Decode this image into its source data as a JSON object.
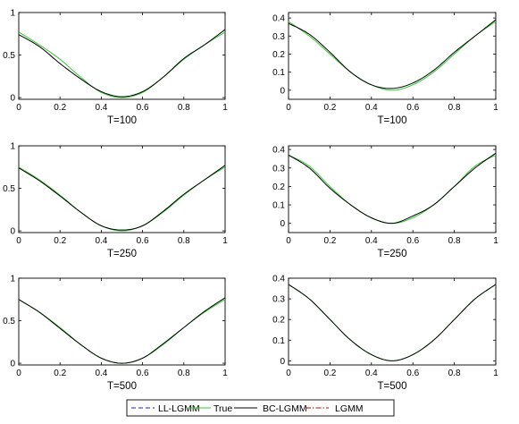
{
  "chart_data": {
    "type": "line",
    "legend": {
      "placement": "bottom",
      "entries": [
        {
          "name": "LL-LGMM",
          "color": "#1a1acc",
          "style": "dashed"
        },
        {
          "name": "True",
          "color": "#33cc33",
          "style": "solid"
        },
        {
          "name": "BC-LGMM",
          "color": "#000000",
          "style": "solid"
        },
        {
          "name": "LGMM",
          "color": "#cc0000",
          "style": "dashdot"
        }
      ]
    },
    "panels": [
      {
        "xlabel": "T=100",
        "xlim": [
          0,
          1
        ],
        "ylim": [
          -0.02,
          1.0
        ],
        "xticks": [
          "0",
          "0.2",
          "0.4",
          "0.6",
          "0.8",
          "1"
        ],
        "yticks": [
          "0",
          "0.5",
          "1"
        ],
        "series": [
          {
            "name": "True",
            "x": [
              0,
              0.1,
              0.2,
              0.3,
              0.4,
              0.5,
              0.6,
              0.7,
              0.8,
              0.9,
              1
            ],
            "y": [
              0.77,
              0.62,
              0.45,
              0.24,
              0.06,
              0.0,
              0.06,
              0.24,
              0.45,
              0.62,
              0.77
            ]
          },
          {
            "name": "BC-LGMM",
            "x": [
              0,
              0.1,
              0.2,
              0.3,
              0.4,
              0.5,
              0.6,
              0.7,
              0.8,
              0.9,
              1
            ],
            "y": [
              0.74,
              0.6,
              0.4,
              0.22,
              0.07,
              0.01,
              0.07,
              0.24,
              0.46,
              0.62,
              0.8
            ]
          }
        ]
      },
      {
        "xlabel": "T=100",
        "xlim": [
          0,
          1
        ],
        "ylim": [
          -0.05,
          0.43
        ],
        "xticks": [
          "0",
          "0.2",
          "0.4",
          "0.6",
          "0.8",
          "1"
        ],
        "yticks": [
          "0",
          "0.1",
          "0.2",
          "0.3",
          "0.4"
        ],
        "series": [
          {
            "name": "True",
            "x": [
              0,
              0.1,
              0.2,
              0.3,
              0.4,
              0.5,
              0.6,
              0.7,
              0.8,
              0.9,
              1
            ],
            "y": [
              0.38,
              0.3,
              0.2,
              0.1,
              0.03,
              0.0,
              0.03,
              0.1,
              0.2,
              0.3,
              0.38
            ]
          },
          {
            "name": "BC-LGMM",
            "x": [
              0,
              0.1,
              0.2,
              0.3,
              0.4,
              0.5,
              0.6,
              0.7,
              0.8,
              0.9,
              1
            ],
            "y": [
              0.37,
              0.31,
              0.21,
              0.1,
              0.03,
              0.01,
              0.04,
              0.11,
              0.21,
              0.3,
              0.39
            ]
          }
        ]
      },
      {
        "xlabel": "T=250",
        "xlim": [
          0,
          1
        ],
        "ylim": [
          -0.02,
          1.0
        ],
        "xticks": [
          "0",
          "0.2",
          "0.4",
          "0.6",
          "0.8",
          "1"
        ],
        "yticks": [
          "0",
          "0.5",
          "1"
        ],
        "series": [
          {
            "name": "True",
            "x": [
              0,
              0.1,
              0.2,
              0.3,
              0.4,
              0.5,
              0.6,
              0.7,
              0.8,
              0.9,
              1
            ],
            "y": [
              0.75,
              0.6,
              0.42,
              0.22,
              0.06,
              0.0,
              0.06,
              0.22,
              0.42,
              0.6,
              0.75
            ]
          },
          {
            "name": "BC-LGMM",
            "x": [
              0,
              0.1,
              0.2,
              0.3,
              0.4,
              0.5,
              0.6,
              0.7,
              0.8,
              0.9,
              1
            ],
            "y": [
              0.74,
              0.59,
              0.41,
              0.22,
              0.06,
              0.01,
              0.06,
              0.23,
              0.43,
              0.6,
              0.77
            ]
          }
        ]
      },
      {
        "xlabel": "T=250",
        "xlim": [
          0,
          1
        ],
        "ylim": [
          -0.05,
          0.42
        ],
        "xticks": [
          "0",
          "0.2",
          "0.4",
          "0.6",
          "0.8",
          "1"
        ],
        "yticks": [
          "0",
          "0.1",
          "0.2",
          "0.3",
          "0.4"
        ],
        "series": [
          {
            "name": "True",
            "x": [
              0,
              0.1,
              0.2,
              0.3,
              0.4,
              0.5,
              0.6,
              0.7,
              0.8,
              0.9,
              1
            ],
            "y": [
              0.37,
              0.31,
              0.2,
              0.1,
              0.03,
              0.0,
              0.03,
              0.1,
              0.2,
              0.31,
              0.37
            ]
          },
          {
            "name": "BC-LGMM",
            "x": [
              0,
              0.1,
              0.2,
              0.3,
              0.4,
              0.5,
              0.6,
              0.7,
              0.8,
              0.9,
              1
            ],
            "y": [
              0.37,
              0.3,
              0.19,
              0.1,
              0.03,
              0.0,
              0.04,
              0.1,
              0.2,
              0.3,
              0.38
            ]
          }
        ]
      },
      {
        "xlabel": "T=500",
        "xlim": [
          0,
          1
        ],
        "ylim": [
          -0.02,
          1.0
        ],
        "xticks": [
          "0",
          "0.2",
          "0.4",
          "0.6",
          "0.8",
          "1"
        ],
        "yticks": [
          "0",
          "0.5",
          "1"
        ],
        "series": [
          {
            "name": "True",
            "x": [
              0,
              0.1,
              0.2,
              0.3,
              0.4,
              0.5,
              0.6,
              0.7,
              0.8,
              0.9,
              1
            ],
            "y": [
              0.75,
              0.6,
              0.42,
              0.22,
              0.06,
              0.0,
              0.06,
              0.22,
              0.42,
              0.6,
              0.75
            ]
          },
          {
            "name": "BC-LGMM",
            "x": [
              0,
              0.1,
              0.2,
              0.3,
              0.4,
              0.5,
              0.6,
              0.7,
              0.8,
              0.9,
              1
            ],
            "y": [
              0.75,
              0.6,
              0.41,
              0.22,
              0.06,
              0.0,
              0.06,
              0.23,
              0.42,
              0.61,
              0.77
            ]
          }
        ]
      },
      {
        "xlabel": "T=500",
        "xlim": [
          0,
          1
        ],
        "ylim": [
          -0.02,
          0.4
        ],
        "xticks": [
          "0",
          "0.2",
          "0.4",
          "0.6",
          "0.8",
          "1"
        ],
        "yticks": [
          "0",
          "0.1",
          "0.2",
          "0.3",
          "0.4"
        ],
        "series": [
          {
            "name": "True",
            "x": [
              0,
              0.1,
              0.2,
              0.3,
              0.4,
              0.5,
              0.6,
              0.7,
              0.8,
              0.9,
              1
            ],
            "y": [
              0.37,
              0.3,
              0.2,
              0.1,
              0.03,
              0.0,
              0.03,
              0.1,
              0.2,
              0.3,
              0.37
            ]
          },
          {
            "name": "BC-LGMM",
            "x": [
              0,
              0.1,
              0.2,
              0.3,
              0.4,
              0.5,
              0.6,
              0.7,
              0.8,
              0.9,
              1
            ],
            "y": [
              0.37,
              0.3,
              0.2,
              0.1,
              0.03,
              0.0,
              0.03,
              0.1,
              0.2,
              0.3,
              0.37
            ]
          }
        ]
      }
    ]
  }
}
